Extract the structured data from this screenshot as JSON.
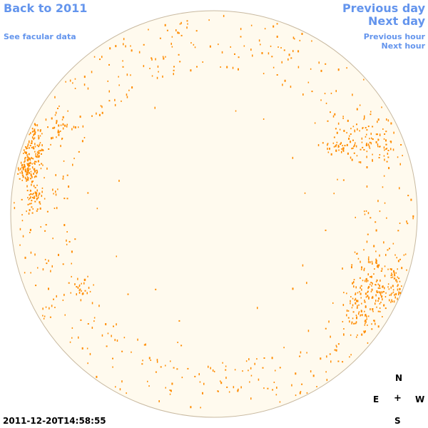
{
  "nav": {
    "back_label": "Back to 2011",
    "facular_label": "See facular data",
    "prev_day_label": "Previous day",
    "next_day_label": "Next day",
    "prev_hour_label": "Previous hour",
    "next_hour_label": "Next hour"
  },
  "compass": {
    "north": "N",
    "east": "E",
    "center": "+",
    "west": "W",
    "south": "S"
  },
  "timestamp": "2011-12-20T14:58:55",
  "colors": {
    "link": "#6495ed",
    "disk_fill": "#fffaee",
    "disk_edge": "#c8b9a0",
    "facula": "#ff8c00"
  },
  "faculae_regions": [
    {
      "name": "east-limb-north",
      "density": "dense"
    },
    {
      "name": "west-limb-north",
      "density": "moderate"
    },
    {
      "name": "west-limb-south",
      "density": "dense"
    },
    {
      "name": "south-limb",
      "density": "sparse"
    },
    {
      "name": "north-limb",
      "density": "sparse"
    }
  ]
}
